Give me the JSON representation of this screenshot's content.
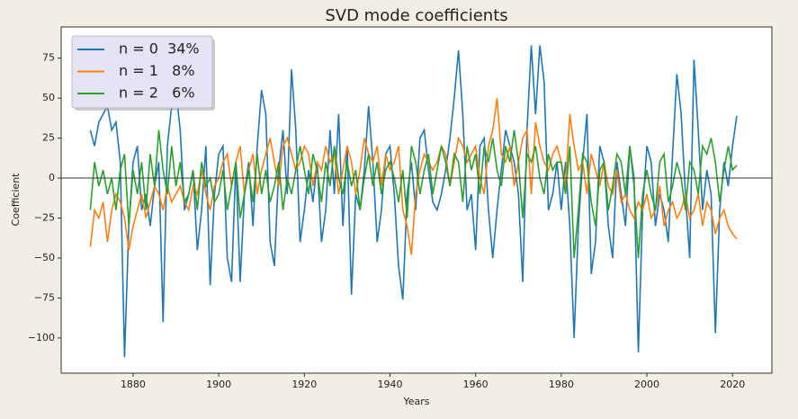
{
  "chart_data": {
    "type": "line",
    "title": "SVD mode coefficients",
    "x_label": "Years",
    "y_label": "Coefficient",
    "x": [
      1870,
      1871,
      1872,
      1873,
      1874,
      1875,
      1876,
      1877,
      1878,
      1879,
      1880,
      1881,
      1882,
      1883,
      1884,
      1885,
      1886,
      1887,
      1888,
      1889,
      1890,
      1891,
      1892,
      1893,
      1894,
      1895,
      1896,
      1897,
      1898,
      1899,
      1900,
      1901,
      1902,
      1903,
      1904,
      1905,
      1906,
      1907,
      1908,
      1909,
      1910,
      1911,
      1912,
      1913,
      1914,
      1915,
      1916,
      1917,
      1918,
      1919,
      1920,
      1921,
      1922,
      1923,
      1924,
      1925,
      1926,
      1927,
      1928,
      1929,
      1930,
      1931,
      1932,
      1933,
      1934,
      1935,
      1936,
      1937,
      1938,
      1939,
      1940,
      1941,
      1942,
      1943,
      1944,
      1945,
      1946,
      1947,
      1948,
      1949,
      1950,
      1951,
      1952,
      1953,
      1954,
      1955,
      1956,
      1957,
      1958,
      1959,
      1960,
      1961,
      1962,
      1963,
      1964,
      1965,
      1966,
      1967,
      1968,
      1969,
      1970,
      1971,
      1972,
      1973,
      1974,
      1975,
      1976,
      1977,
      1978,
      1979,
      1980,
      1981,
      1982,
      1983,
      1984,
      1985,
      1986,
      1987,
      1988,
      1989,
      1990,
      1991,
      1992,
      1993,
      1994,
      1995,
      1996,
      1997,
      1998,
      1999,
      2000,
      2001,
      2002,
      2003,
      2004,
      2005,
      2006,
      2007,
      2008,
      2009,
      2010,
      2011,
      2012,
      2013,
      2014,
      2015,
      2016,
      2017,
      2018,
      2019,
      2020,
      2021
    ],
    "series": [
      {
        "name": "n = 0  34%",
        "color": "#1f77b4",
        "values": [
          30,
          20,
          35,
          40,
          45,
          30,
          35,
          10,
          -112,
          -30,
          10,
          20,
          -20,
          -10,
          -30,
          -5,
          10,
          -90,
          20,
          45,
          55,
          30,
          -20,
          -10,
          5,
          -45,
          -20,
          20,
          -67,
          -10,
          15,
          20,
          -50,
          -65,
          10,
          -65,
          -10,
          10,
          -30,
          20,
          55,
          40,
          -40,
          -55,
          5,
          30,
          -10,
          68,
          30,
          -40,
          -20,
          5,
          -15,
          10,
          -40,
          -20,
          30,
          -10,
          40,
          -30,
          20,
          -73,
          -10,
          -20,
          5,
          45,
          10,
          -40,
          -20,
          15,
          20,
          -10,
          -55,
          -76,
          -10,
          10,
          -20,
          25,
          30,
          5,
          -15,
          -20,
          -10,
          5,
          25,
          50,
          80,
          40,
          -20,
          -10,
          -45,
          20,
          25,
          -20,
          -50,
          -20,
          5,
          30,
          20,
          10,
          -10,
          -65,
          30,
          83,
          40,
          83,
          60,
          -20,
          -10,
          10,
          -20,
          10,
          -30,
          -100,
          -30,
          10,
          40,
          -60,
          -40,
          20,
          10,
          -30,
          -50,
          10,
          -10,
          -30,
          20,
          0,
          -109,
          -20,
          20,
          10,
          -30,
          -10,
          -20,
          -40,
          15,
          65,
          40,
          -10,
          -50,
          74,
          30,
          -20,
          5,
          -10,
          -97,
          -20,
          10,
          -5,
          20,
          39
        ]
      },
      {
        "name": "n = 1   8%",
        "color": "#ff7f0e",
        "values": [
          -43,
          -20,
          -25,
          -15,
          -40,
          -20,
          -10,
          -15,
          -25,
          -45,
          -30,
          -20,
          -10,
          -25,
          -15,
          -5,
          -10,
          -20,
          -5,
          -15,
          -10,
          -5,
          -15,
          -20,
          -5,
          -10,
          5,
          -10,
          -20,
          -5,
          0,
          10,
          15,
          -5,
          10,
          20,
          -10,
          5,
          15,
          -10,
          5,
          15,
          25,
          10,
          -5,
          20,
          25,
          15,
          5,
          10,
          20,
          15,
          -5,
          10,
          5,
          20,
          10,
          15,
          -10,
          5,
          20,
          10,
          -10,
          5,
          25,
          15,
          10,
          20,
          -5,
          15,
          5,
          10,
          20,
          -20,
          -30,
          -48,
          -10,
          5,
          15,
          10,
          5,
          10,
          20,
          15,
          -5,
          10,
          25,
          20,
          10,
          15,
          20,
          0,
          -10,
          20,
          30,
          50,
          15,
          10,
          20,
          -5,
          10,
          25,
          30,
          -10,
          35,
          20,
          10,
          5,
          15,
          20,
          10,
          -5,
          40,
          20,
          5,
          10,
          -10,
          15,
          5,
          -5,
          10,
          -5,
          -10,
          5,
          -15,
          -10,
          -20,
          -25,
          -15,
          -20,
          -10,
          -25,
          -20,
          -5,
          -30,
          -20,
          -15,
          -25,
          -20,
          -10,
          -25,
          -20,
          -10,
          -30,
          -15,
          -20,
          -35,
          -25,
          -20,
          -30,
          -35,
          -38
        ]
      },
      {
        "name": "n = 2   6%",
        "color": "#2ca02c",
        "values": [
          -20,
          10,
          -5,
          5,
          -10,
          0,
          -20,
          5,
          15,
          -30,
          5,
          -10,
          10,
          -20,
          15,
          -5,
          30,
          5,
          -10,
          20,
          -5,
          10,
          -15,
          -10,
          5,
          -20,
          10,
          -5,
          0,
          -15,
          -10,
          5,
          -20,
          -5,
          10,
          -25,
          -10,
          5,
          -15,
          15,
          -10,
          5,
          -15,
          -5,
          10,
          -20,
          0,
          -10,
          5,
          20,
          5,
          -10,
          15,
          5,
          -15,
          10,
          -5,
          20,
          0,
          -10,
          10,
          -5,
          5,
          -20,
          0,
          15,
          -5,
          10,
          -10,
          5,
          10,
          0,
          -15,
          5,
          -25,
          20,
          10,
          -10,
          5,
          15,
          -10,
          5,
          20,
          10,
          -5,
          15,
          10,
          -15,
          20,
          5,
          15,
          -10,
          20,
          10,
          25,
          5,
          -5,
          20,
          10,
          30,
          10,
          -25,
          15,
          10,
          20,
          0,
          -10,
          15,
          5,
          10,
          10,
          -10,
          20,
          -50,
          -20,
          15,
          10,
          -15,
          -30,
          5,
          10,
          -20,
          -5,
          15,
          10,
          -10,
          20,
          -5,
          -50,
          -10,
          5,
          -10,
          -20,
          10,
          15,
          -15,
          -5,
          10,
          0,
          -20,
          10,
          5,
          -10,
          20,
          15,
          25,
          10,
          -15,
          5,
          20,
          5,
          8
        ]
      }
    ],
    "xlim": [
      1863.2,
      2029.2
    ],
    "ylim": [
      -122,
      94.5
    ],
    "xticks": [
      1880,
      1900,
      1920,
      1940,
      1960,
      1980,
      2000,
      2020
    ],
    "yticks": [
      {
        "value": -100,
        "label": "−100"
      },
      {
        "value": -75,
        "label": "−75"
      },
      {
        "value": -50,
        "label": "−50"
      },
      {
        "value": -25,
        "label": "−25"
      },
      0,
      25,
      50,
      75
    ],
    "hline": 0,
    "hline_color": "#333333",
    "grid": false,
    "legend": "upper left"
  }
}
